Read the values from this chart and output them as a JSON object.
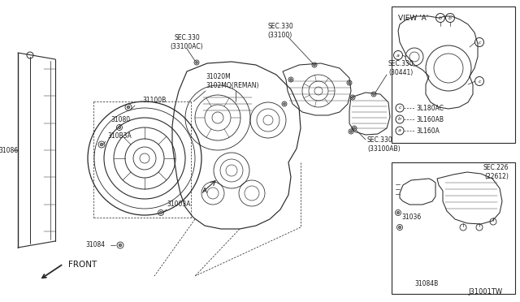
{
  "title": "J31001TW",
  "bg_color": "#ffffff",
  "lc": "#2a2a2a",
  "fig_width": 6.4,
  "fig_height": 3.72,
  "labels": {
    "sec330_33100ac": "SEC.330\n(33100AC)",
    "sec330_33100": "SEC.330\n(33100)",
    "sec330_30441": "SEC.330\n(30441)",
    "sec330_33100ab": "SEC.330\n(33100AB)",
    "31020m": "31020M\n3102MQ(REMAN)",
    "31100b": "31100B",
    "31080": "31080",
    "3108b3a": "310B3A",
    "31086": "31086",
    "31003a": "31003A",
    "31084": "31084",
    "front": "FRONT",
    "view_a": "VIEW 'A'",
    "a_label": "A",
    "sec226": "SEC.226\n(22612)",
    "31036": "31036",
    "31084b": "31084B"
  },
  "view_a_legend": [
    {
      "symbol": "a",
      "label": "3L160A"
    },
    {
      "symbol": "b",
      "label": "3L160AB"
    },
    {
      "symbol": "c",
      "label": "3L180AC"
    }
  ]
}
